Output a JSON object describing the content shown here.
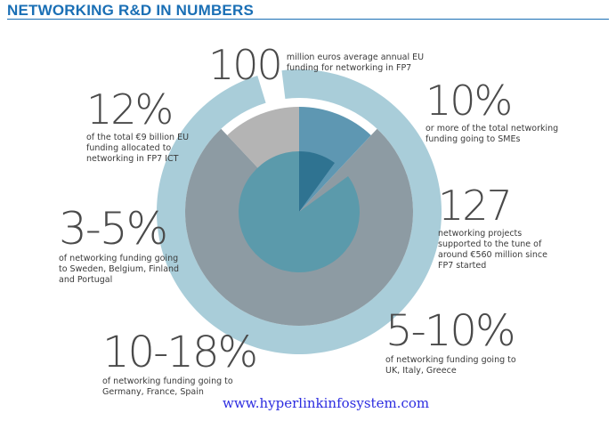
{
  "title": "NETWORKING R&D IN NUMBERS",
  "stats": {
    "s100": {
      "value": "100",
      "text": "million euros average annual EU funding for networking in FP7"
    },
    "s12": {
      "value": "12%",
      "text": "of the total €9 billion EU funding allocated to networking in FP7 ICT"
    },
    "s10": {
      "value": "10%",
      "text": "or more of the total networking funding going to SMEs"
    },
    "s127": {
      "value": "127",
      "text": "networking projects supported to the tune of around €560 million since FP7 started"
    },
    "s35": {
      "value": "3-5%",
      "text": "of networking funding going to Sweden, Belgium, Finland and Portugal"
    },
    "s510": {
      "value": "5-10%",
      "text": "of networking funding going to UK, Italy, Greece"
    },
    "s1018": {
      "value": "10-18%",
      "text": "of networking funding going to Germany, France, Spain"
    }
  },
  "watermark": "www.hyperlinkinfosystem.com",
  "colors": {
    "title": "#1a6fb5",
    "outer_ring": "#a9cdd9",
    "mid_disc": "#8d9ba3",
    "inner_disc": "#5b9aab",
    "wedge_light_gray": "#b4b4b4",
    "wedge_blue": "#5e97b2",
    "inner_wedge": "#2f7391",
    "watermark": "#2c2ce0"
  },
  "chart_data": {
    "type": "pie",
    "layers": [
      {
        "name": "outer ring",
        "values": [
          97
        ]
      },
      {
        "name": "gray disc",
        "values": [
          12,
          12,
          76
        ]
      },
      {
        "name": "inner disc",
        "values": [
          10,
          5,
          85
        ]
      }
    ]
  }
}
